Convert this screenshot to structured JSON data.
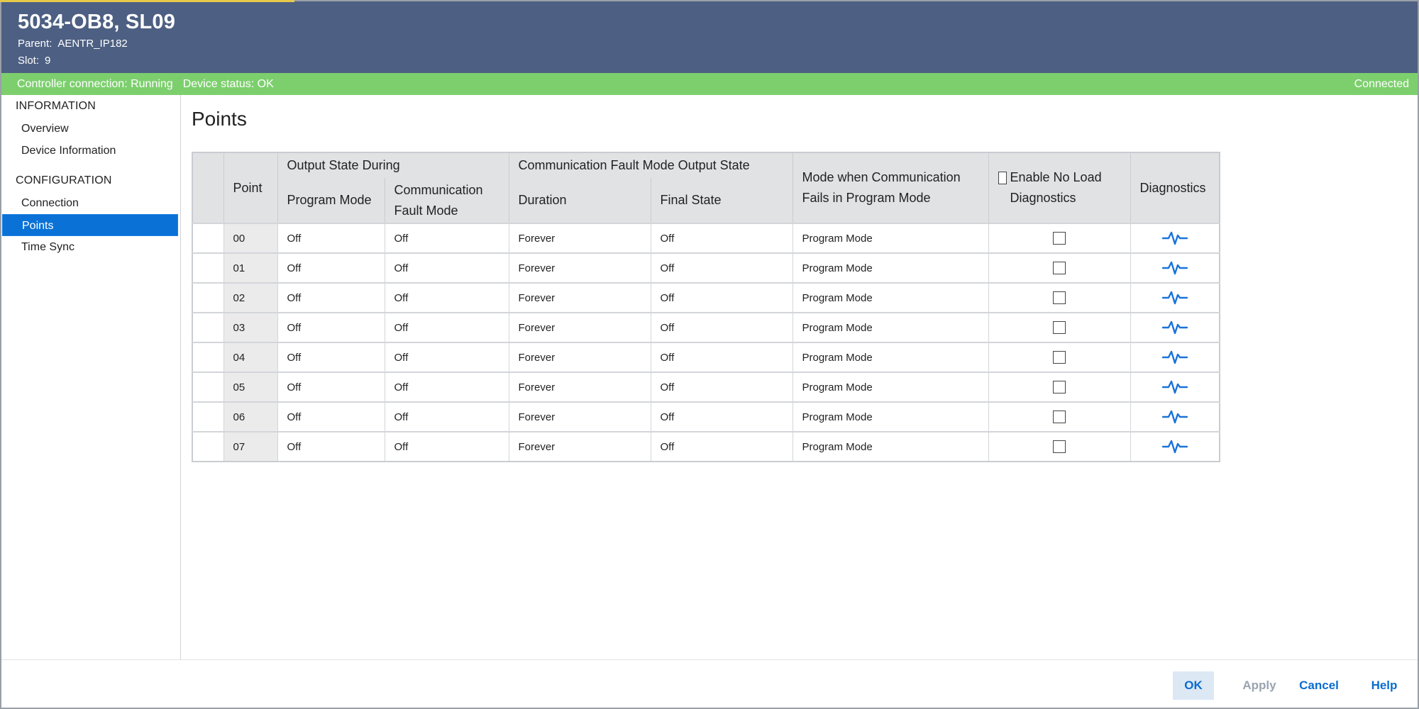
{
  "header": {
    "title": "5034-OB8, SL09",
    "parent_label": "Parent:",
    "parent_value": "AENTR_IP182",
    "slot_label": "Slot:",
    "slot_value": "9"
  },
  "status": {
    "controller": "Controller connection: Running",
    "device": "Device status: OK",
    "connection": "Connected",
    "color": "#7dcf6e"
  },
  "sidebar": {
    "sections": [
      {
        "title": "INFORMATION",
        "items": [
          {
            "label": "Overview"
          },
          {
            "label": "Device Information"
          }
        ]
      },
      {
        "title": "CONFIGURATION",
        "items": [
          {
            "label": "Connection"
          },
          {
            "label": "Points",
            "active": true
          },
          {
            "label": "Time Sync"
          }
        ]
      }
    ]
  },
  "main": {
    "title": "Points",
    "table": {
      "group_headers": {
        "output_state": "Output State During",
        "comm_fault": "Communication Fault Mode Output State"
      },
      "columns": {
        "point": "Point",
        "program_mode": "Program Mode",
        "comm_fault_mode": "Communication Fault Mode",
        "duration": "Duration",
        "final_state": "Final State",
        "mode_when_fail": "Mode when Communication Fails in Program Mode",
        "enable_no_load": "Enable No Load Diagnostics",
        "diagnostics": "Diagnostics"
      },
      "rows": [
        {
          "point": "00",
          "program_mode": "Off",
          "comm_fault_mode": "Off",
          "duration": "Forever",
          "final_state": "Off",
          "mode_when_fail": "Program Mode",
          "no_load": false
        },
        {
          "point": "01",
          "program_mode": "Off",
          "comm_fault_mode": "Off",
          "duration": "Forever",
          "final_state": "Off",
          "mode_when_fail": "Program Mode",
          "no_load": false
        },
        {
          "point": "02",
          "program_mode": "Off",
          "comm_fault_mode": "Off",
          "duration": "Forever",
          "final_state": "Off",
          "mode_when_fail": "Program Mode",
          "no_load": false
        },
        {
          "point": "03",
          "program_mode": "Off",
          "comm_fault_mode": "Off",
          "duration": "Forever",
          "final_state": "Off",
          "mode_when_fail": "Program Mode",
          "no_load": false
        },
        {
          "point": "04",
          "program_mode": "Off",
          "comm_fault_mode": "Off",
          "duration": "Forever",
          "final_state": "Off",
          "mode_when_fail": "Program Mode",
          "no_load": false
        },
        {
          "point": "05",
          "program_mode": "Off",
          "comm_fault_mode": "Off",
          "duration": "Forever",
          "final_state": "Off",
          "mode_when_fail": "Program Mode",
          "no_load": false
        },
        {
          "point": "06",
          "program_mode": "Off",
          "comm_fault_mode": "Off",
          "duration": "Forever",
          "final_state": "Off",
          "mode_when_fail": "Program Mode",
          "no_load": false
        },
        {
          "point": "07",
          "program_mode": "Off",
          "comm_fault_mode": "Off",
          "duration": "Forever",
          "final_state": "Off",
          "mode_when_fail": "Program Mode",
          "no_load": false
        }
      ],
      "diagnostics_icon": "diagnostics-pulse-icon",
      "icon_color": "#1a73d9"
    }
  },
  "footer": {
    "ok": "OK",
    "apply": "Apply",
    "cancel": "Cancel",
    "help": "Help"
  }
}
